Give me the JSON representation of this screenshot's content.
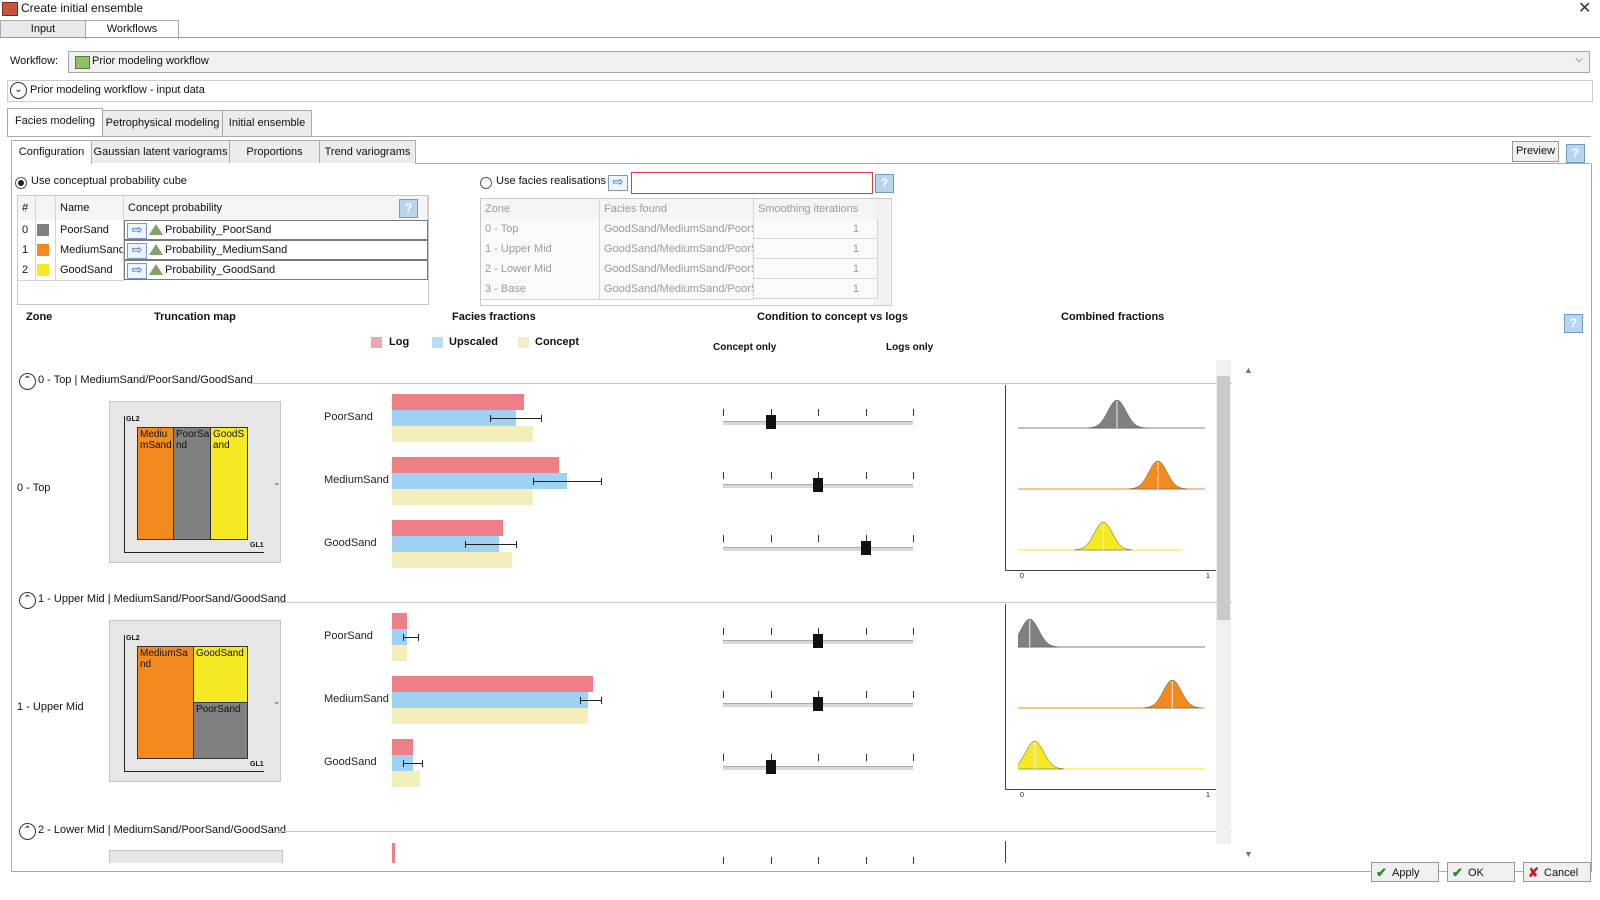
{
  "window": {
    "title": "Create initial ensemble",
    "close": "✕"
  },
  "top_tabs": [
    "Input",
    "Workflows"
  ],
  "workflow": {
    "label": "Workflow:",
    "value": "Prior modeling workflow",
    "caret": "⌵"
  },
  "section": {
    "label": "Prior modeling workflow - input data",
    "toggle": "⌄"
  },
  "main_tabs": [
    "Facies modeling",
    "Petrophysical modeling",
    "Initial ensemble"
  ],
  "sub_tabs": [
    "Configuration",
    "Gaussian latent variograms",
    "Proportions",
    "Trend variograms"
  ],
  "preview_label": "Preview",
  "help_glyph": "?",
  "options": {
    "conceptual": "Use conceptual probability cube",
    "realisations": "Use facies realisations"
  },
  "arrow_glyph": "⇨",
  "facies_table": {
    "headers": [
      "#",
      "Name",
      "Concept probability"
    ],
    "rows": [
      {
        "index": "0",
        "name": "PoorSand",
        "color": "#808080",
        "prob": "Probability_PoorSand"
      },
      {
        "index": "1",
        "name": "MediumSand",
        "color": "#f28a1e",
        "prob": "Probability_MediumSand"
      },
      {
        "index": "2",
        "name": "GoodSand",
        "color": "#f4e922",
        "prob": "Probability_GoodSand"
      }
    ]
  },
  "zone_table": {
    "headers": [
      "Zone",
      "Facies found",
      "Smoothing iterations"
    ],
    "rows": [
      {
        "zone": "0 - Top",
        "facies": "GoodSand/MediumSand/PoorSa",
        "iter": "1"
      },
      {
        "zone": "1 - Upper Mid",
        "facies": "GoodSand/MediumSand/PoorSa",
        "iter": "1"
      },
      {
        "zone": "2 - Lower Mid",
        "facies": "GoodSand/MediumSand/PoorSa",
        "iter": "1"
      },
      {
        "zone": "3 - Base",
        "facies": "GoodSand/MediumSand/PoorSa",
        "iter": "1"
      }
    ]
  },
  "column_headers": {
    "zone": "Zone",
    "truncation": "Truncation map",
    "fractions": "Facies fractions",
    "condition": "Condition to concept vs logs",
    "combined": "Combined fractions"
  },
  "legend": [
    {
      "label": "Log",
      "color": "#f0a6ad"
    },
    {
      "label": "Upscaled",
      "color": "#bcdcf4"
    },
    {
      "label": "Concept",
      "color": "#f4edc4"
    }
  ],
  "slider_labels": {
    "left": "Concept only",
    "right": "Logs only"
  },
  "axis_tags": {
    "v": "GL2",
    "h": "GL1"
  },
  "cf_ticks": [
    "0",
    "1"
  ],
  "colors": {
    "log": "#ef7f87",
    "upscaled": "#9fd2f2",
    "concept": "#f4edbc",
    "poor": "#808080",
    "medium": "#f28a1e",
    "good": "#f4e922"
  },
  "zones": [
    {
      "header": "0 - Top | MediumSand/PoorSand/GoodSand",
      "name": "0 - Top",
      "tmap_labels": [
        "MediumSand",
        "PoorSand",
        "GoodSand"
      ],
      "facies": [
        {
          "name": "PoorSand",
          "log": 0.31,
          "upscaled": 0.29,
          "concept": 0.33,
          "err": [
            0.23,
            0.35
          ],
          "slider": 0.25
        },
        {
          "name": "MediumSand",
          "log": 0.39,
          "upscaled": 0.41,
          "concept": 0.33,
          "err": [
            0.33,
            0.49
          ],
          "slider": 0.5
        },
        {
          "name": "GoodSand",
          "log": 0.26,
          "upscaled": 0.25,
          "concept": 0.28,
          "err": [
            0.17,
            0.29
          ],
          "slider": 0.75
        }
      ]
    },
    {
      "header": "1 - Upper Mid | MediumSand/PoorSand/GoodSand",
      "name": "1 - Upper Mid",
      "tmap_labels": [
        "MediumSand",
        "GoodSand",
        "PoorSand"
      ],
      "facies": [
        {
          "name": "PoorSand",
          "log": 0.035,
          "upscaled": 0.035,
          "concept": 0.035,
          "err": [
            0.025,
            0.06
          ],
          "slider": 0.5
        },
        {
          "name": "MediumSand",
          "log": 0.47,
          "upscaled": 0.46,
          "concept": 0.46,
          "err": [
            0.44,
            0.49
          ],
          "slider": 0.5
        },
        {
          "name": "GoodSand",
          "log": 0.05,
          "upscaled": 0.05,
          "concept": 0.065,
          "err": [
            0.025,
            0.07
          ],
          "slider": 0.25
        }
      ]
    }
  ],
  "zone3_header": "2 - Lower Mid | MediumSand/PoorSand/GoodSand",
  "scroll": {
    "up": "▲",
    "down": "▼"
  },
  "buttons": [
    {
      "label": "Apply",
      "glyph": "✔",
      "color": "#2a8a2a"
    },
    {
      "label": "OK",
      "glyph": "✔",
      "color": "#2a8a2a"
    },
    {
      "label": "Cancel",
      "glyph": "✘",
      "color": "#c01e1e"
    }
  ]
}
